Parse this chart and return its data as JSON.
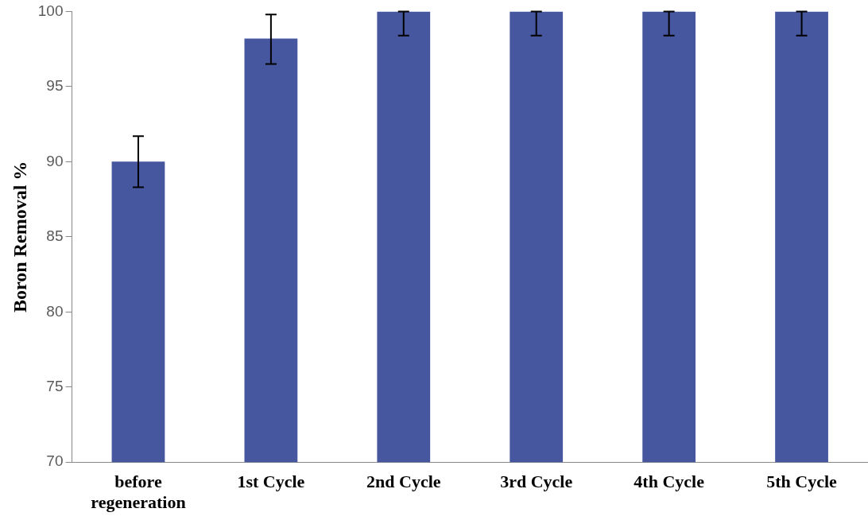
{
  "chart_data": {
    "type": "bar",
    "ylabel": "Boron Removal %",
    "categories": [
      "before regeneration",
      "1st Cycle",
      "2nd Cycle",
      "3rd Cycle",
      "4th Cycle",
      "5th Cycle"
    ],
    "values": [
      90.0,
      98.2,
      100,
      100,
      100,
      100
    ],
    "errors": [
      [
        88.3,
        91.7
      ],
      [
        96.5,
        99.8
      ],
      [
        98.4,
        100
      ],
      [
        98.4,
        100
      ],
      [
        98.4,
        100
      ],
      [
        98.4,
        100
      ]
    ],
    "color": "#4657a0",
    "ylim": [
      70,
      100
    ],
    "yticks": [
      70,
      75,
      80,
      85,
      90,
      95,
      100
    ],
    "grid": false,
    "legend": false
  }
}
